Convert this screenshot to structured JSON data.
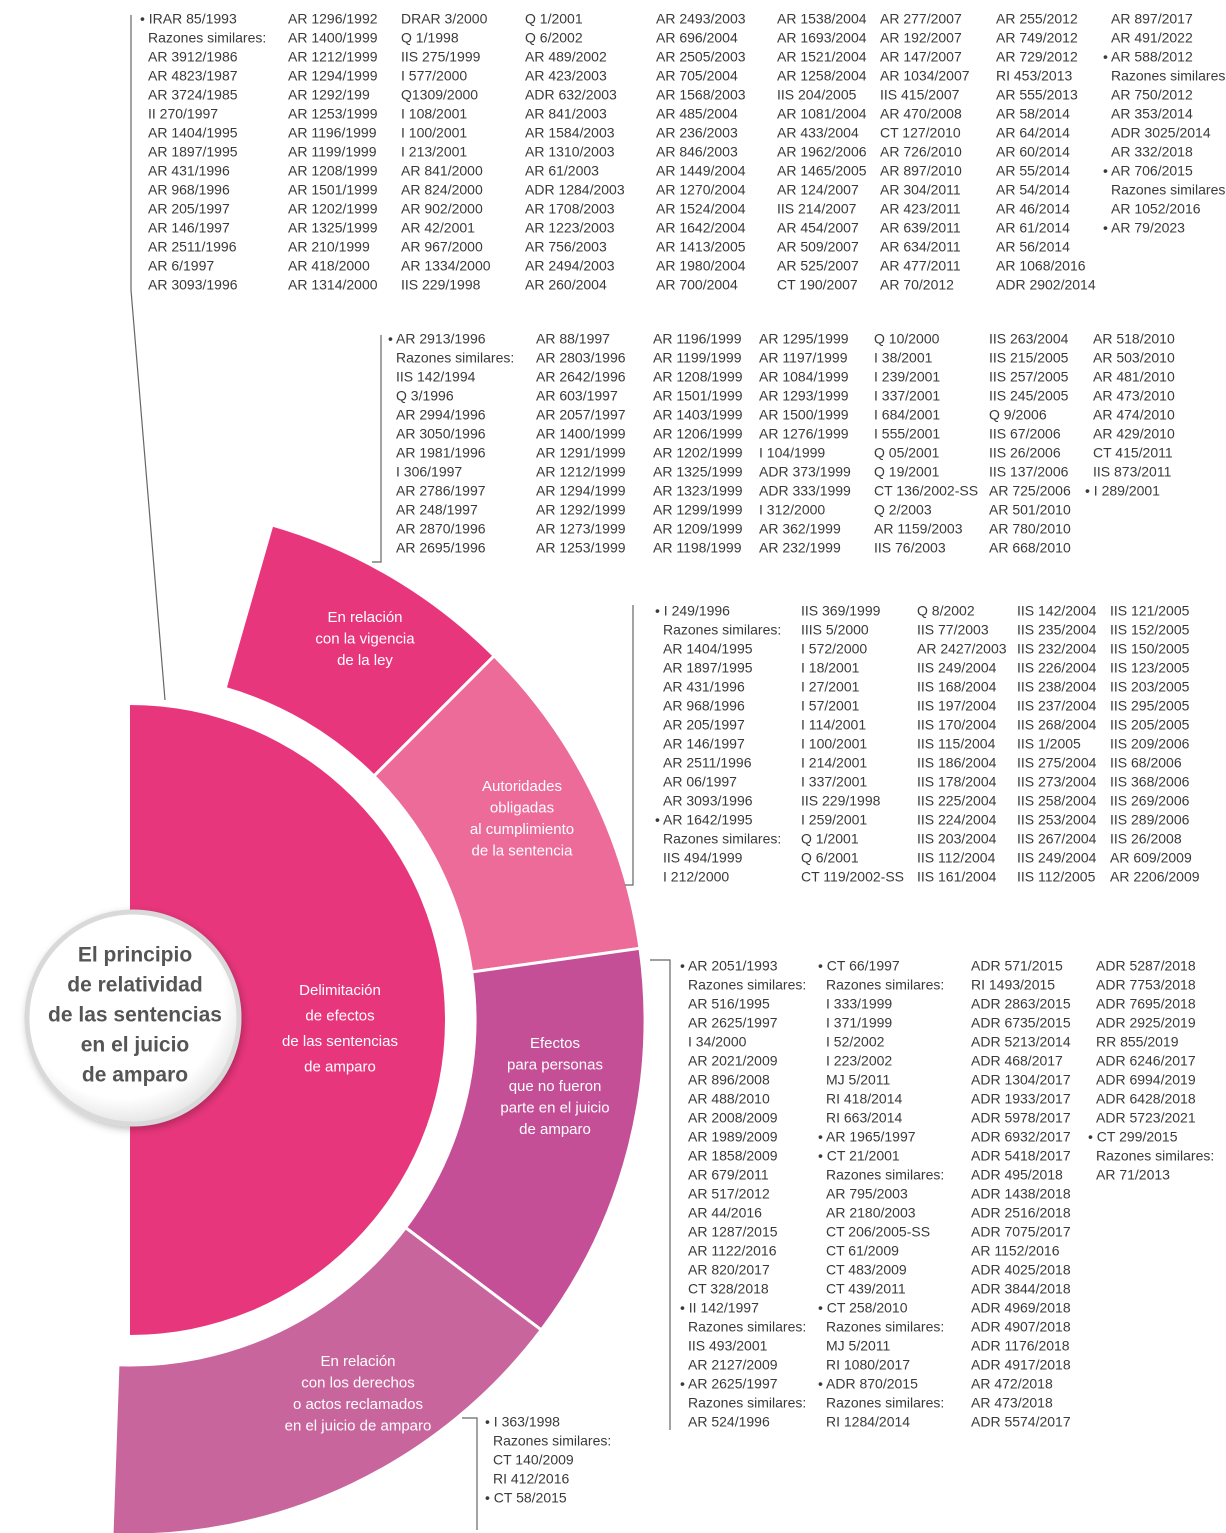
{
  "center_lines": [
    "El principio",
    "de relatividad",
    "de las sentencias",
    "en el juicio",
    "de amparo"
  ],
  "inner_lines": [
    "Delimitación",
    "de efectos",
    "de las sentencias",
    "de amparo"
  ],
  "segments": [
    {
      "label": [
        "En relación",
        "con la vigencia",
        "de la ley"
      ]
    },
    {
      "label": [
        "Autoridades",
        "obligadas",
        "al cumplimiento",
        "de la sentencia"
      ]
    },
    {
      "label": [
        "Efectos",
        "para personas",
        "que no fueron",
        "parte en el juicio",
        "de amparo"
      ]
    },
    {
      "label": [
        "En relación",
        "con los derechos",
        "o actos reclamados",
        "en el juicio de amparo"
      ]
    }
  ],
  "groups": [
    {
      "columns": [
        [
          "• IRAR 85/1993",
          "Razones similares:",
          "AR 3912/1986",
          "AR 4823/1987",
          "AR 3724/1985",
          "II 270/1997",
          "AR 1404/1995",
          "AR 1897/1995",
          "AR 431/1996",
          "AR 968/1996",
          "AR 205/1997",
          "AR 146/1997",
          "AR 2511/1996",
          "AR 6/1997",
          "AR 3093/1996"
        ],
        [
          "AR 1296/1992",
          "AR 1400/1999",
          "AR 1212/1999",
          "AR 1294/1999",
          "AR 1292/199",
          "AR 1253/1999",
          "AR 1196/1999",
          "AR 1199/1999",
          "AR 1208/1999",
          "AR 1501/1999",
          "AR 1202/1999",
          "AR 1325/1999",
          "AR 210/1999",
          "AR 418/2000",
          "AR 1314/2000"
        ],
        [
          "DRAR 3/2000",
          "Q 1/1998",
          "IIS 275/1999",
          "I 577/2000",
          "Q1309/2000",
          "I 108/2001",
          "I 100/2001",
          "I 213/2001",
          "AR 841/2000",
          "AR 824/2000",
          "AR 902/2000",
          "AR 42/2001",
          "AR 967/2000",
          "AR 1334/2000",
          "IIS 229/1998"
        ],
        [
          "Q 1/2001",
          "Q 6/2002",
          "AR 489/2002",
          "AR 423/2003",
          "ADR 632/2003",
          "AR 841/2003",
          "AR 1584/2003",
          "AR 1310/2003",
          "AR 61/2003",
          "ADR 1284/2003",
          "AR 1708/2003",
          "AR 1223/2003",
          "AR 756/2003",
          "AR 2494/2003",
          "AR 260/2004"
        ],
        [
          "AR 2493/2003",
          "AR 696/2004",
          "AR 2505/2003",
          "AR 705/2004",
          "AR 1568/2003",
          "AR 485/2004",
          "AR 236/2003",
          "AR 846/2003",
          "AR 1449/2004",
          "AR 1270/2004",
          "AR 1524/2004",
          "AR 1642/2004",
          "AR 1413/2005",
          "AR 1980/2004",
          "AR 700/2004"
        ],
        [
          "AR 1538/2004",
          "AR 1693/2004",
          "AR 1521/2004",
          "AR 1258/2004",
          "IIS 204/2005",
          "AR 1081/2004",
          "AR 433/2004",
          "AR 1962/2006",
          "AR 1465/2005",
          "AR 124/2007",
          "IIS 214/2007",
          "AR 454/2007",
          "AR 509/2007",
          "AR 525/2007",
          "CT 190/2007"
        ],
        [
          "AR 277/2007",
          "AR 192/2007",
          "AR 147/2007",
          "AR 1034/2007",
          "IIS 415/2007",
          "AR 470/2008",
          "CT 127/2010",
          "AR 726/2010",
          "AR 897/2010",
          "AR 304/2011",
          "AR 423/2011",
          "AR 639/2011",
          "AR 634/2011",
          "AR 477/2011",
          "AR 70/2012"
        ],
        [
          "AR 255/2012",
          "AR 749/2012",
          "AR 729/2012",
          "RI 453/2013",
          "AR 555/2013",
          "AR 58/2014",
          "AR 64/2014",
          "AR 60/2014",
          "AR 55/2014",
          "AR 54/2014",
          "AR 46/2014",
          "AR 61/2014",
          "AR 56/2014",
          "AR 1068/2016",
          "ADR 2902/2014"
        ],
        [
          "AR 897/2017",
          "AR 491/2022",
          "• AR 588/2012",
          "Razones similares:",
          "AR 750/2012",
          "AR 353/2014",
          "ADR 3025/2014",
          "AR 332/2018",
          "• AR 706/2015",
          "Razones similares:",
          "AR 1052/2016",
          "• AR 79/2023"
        ]
      ]
    },
    {
      "columns": [
        [
          "• AR 2913/1996",
          "Razones similares:",
          "IIS 142/1994",
          "Q 3/1996",
          "AR  2994/1996",
          "AR  3050/1996",
          "AR 1981/1996",
          "I 306/1997",
          "AR 2786/1997",
          "AR  248/1997",
          "AR 2870/1996",
          "AR 2695/1996"
        ],
        [
          "AR 88/1997",
          "AR 2803/1996",
          "AR 2642/1996",
          "AR 603/1997",
          "AR 2057/1997",
          "AR 1400/1999",
          "AR 1291/1999",
          "AR 1212/1999",
          "AR 1294/1999",
          "AR 1292/1999",
          "AR 1273/1999",
          "AR 1253/1999"
        ],
        [
          "AR 1196/1999",
          "AR 1199/1999",
          "AR 1208/1999",
          "AR 1501/1999",
          "AR 1403/1999",
          "AR 1206/1999",
          "AR 1202/1999",
          "AR 1325/1999",
          "AR 1323/1999",
          "AR 1299/1999",
          "AR 1209/1999",
          "AR 1198/1999"
        ],
        [
          "AR 1295/1999",
          "AR 1197/1999",
          "AR 1084/1999",
          "AR 1293/1999",
          "AR 1500/1999",
          "AR 1276/1999",
          "I 104/1999",
          "ADR 373/1999",
          "ADR 333/1999",
          "I 312/2000",
          "AR 362/1999",
          "AR 232/1999"
        ],
        [
          "Q 10/2000",
          "I 38/2001",
          "I 239/2001",
          "I 337/2001",
          "I 684/2001",
          "I 555/2001",
          "Q 05/2001",
          "Q 19/2001",
          "CT 136/2002-SS",
          "Q 2/2003",
          "AR 1159/2003",
          "IIS 76/2003"
        ],
        [
          "IIS 263/2004",
          "IIS 215/2005",
          "IIS 257/2005",
          "IIS 245/2005",
          "Q 9/2006",
          "IIS 67/2006",
          "IIS 26/2006",
          "IIS 137/2006",
          "AR 725/2006",
          "AR 501/2010",
          "AR 780/2010",
          "AR 668/2010"
        ],
        [
          "AR 518/2010",
          "AR 503/2010",
          "AR 481/2010",
          "AR 473/2010",
          "AR 474/2010",
          "AR 429/2010",
          "CT 415/2011",
          "IIS 873/2011",
          "• I 289/2001"
        ]
      ]
    },
    {
      "columns": [
        [
          "• I 249/1996",
          "Razones similares:",
          "AR 1404/1995",
          "AR 1897/1995",
          "AR 431/1996",
          "AR 968/1996",
          "AR 205/1997",
          "AR 146/1997",
          "AR 2511/1996",
          "AR 06/1997",
          "AR 3093/1996",
          "• AR 1642/1995",
          "Razones similares:",
          "IIS 494/1999",
          "I 212/2000"
        ],
        [
          "IIS 369/1999",
          "IIIS 5/2000",
          "I 572/2000",
          "I 18/2001",
          "I 27/2001",
          "I 57/2001",
          "I 114/2001",
          "I 100/2001",
          "I 214/2001",
          "I 337/2001",
          "IIS 229/1998",
          "I 259/2001",
          "Q 1/2001",
          "Q 6/2001",
          "CT 119/2002-SS"
        ],
        [
          "Q 8/2002",
          "IIS 77/2003",
          "AR 2427/2003",
          "IIS 249/2004",
          "IIS 168/2004",
          "IIS 197/2004",
          "IIS 170/2004",
          "IIS 115/2004",
          "IIS 186/2004",
          "IIS 178/2004",
          "IIS 225/2004",
          "IIS 224/2004",
          "IIS 203/2004",
          "IIS 112/2004",
          "IIS 161/2004"
        ],
        [
          "IIS 142/2004",
          "IIS 235/2004",
          "IIS 232/2004",
          "IIS 226/2004",
          "IIS 238/2004",
          "IIS 237/2004",
          "IIS 268/2004",
          "IIS 1/2005",
          "IIS 275/2004",
          "IIS 273/2004",
          "IIS 258/2004",
          "IIS 253/2004",
          "IIS 267/2004",
          "IIS 249/2004",
          "IIS 112/2005"
        ],
        [
          "IIS 121/2005",
          "IIS 152/2005",
          "IIS 150/2005",
          "IIS 123/2005",
          "IIS 203/2005",
          "IIS 295/2005",
          "IIS 205/2005",
          "IIS 209/2006",
          "IIS 68/2006",
          "IIS 368/2006",
          "IIS 269/2006",
          "IIS 289/2006",
          "IIS 26/2008",
          "AR 609/2009",
          "AR 2206/2009"
        ]
      ]
    },
    {
      "columns": [
        [
          "• AR 2051/1993",
          "Razones similares:",
          "AR 516/1995",
          "AR 2625/1997",
          "I 34/2000",
          "AR 2021/2009",
          "AR 896/2008",
          "AR 488/2010",
          "AR 2008/2009",
          "AR 1989/2009",
          "AR 1858/2009",
          "AR 679/2011",
          "AR 517/2012",
          "AR 44/2016",
          "AR 1287/2015",
          "AR 1122/2016",
          "AR 820/2017",
          "CT 328/2018",
          "• II 142/1997",
          "Razones similares:",
          "IIS 493/2001",
          "AR 2127/2009",
          "• AR 2625/1997",
          "Razones similares:",
          "AR 524/1996"
        ],
        [
          "• CT 66/1997",
          "Razones similares:",
          "I 333/1999",
          "I 371/1999",
          "I 52/2002",
          "I 223/2002",
          "MJ 5/2011",
          "RI 418/2014",
          "RI 663/2014",
          "• AR 1965/1997",
          "• CT 21/2001",
          "Razones similares:",
          "AR 795/2003",
          "AR 2180/2003",
          "CT 206/2005-SS",
          "CT 61/2009",
          "CT 483/2009",
          "CT 439/2011",
          "• CT 258/2010",
          "Razones similares:",
          "MJ 5/2011",
          "RI 1080/2017",
          "• ADR 870/2015",
          "Razones similares:",
          "RI 1284/2014"
        ],
        [
          "ADR 571/2015",
          "RI 1493/2015",
          "ADR 2863/2015",
          "ADR 6735/2015",
          "ADR 5213/2014",
          "ADR 468/2017",
          "ADR 1304/2017",
          "ADR 1933/2017",
          "ADR 5978/2017",
          "ADR 6932/2017",
          "ADR 5418/2017",
          "ADR 495/2018",
          "ADR 1438/2018",
          "ADR 2516/2018",
          "ADR 7075/2017",
          "AR 1152/2016",
          "ADR 4025/2018",
          "ADR 3844/2018",
          "ADR 4969/2018",
          "ADR 4907/2018",
          "ADR 1176/2018",
          "ADR 4917/2018",
          "AR 472/2018",
          "AR 473/2018",
          "ADR 5574/2017"
        ],
        [
          "ADR 5287/2018",
          "ADR 7753/2018",
          "ADR 7695/2018",
          "ADR 2925/2019",
          "RR 855/2019",
          "ADR 6246/2017",
          "ADR 6994/2019",
          "ADR 6428/2018",
          "ADR 5723/2021",
          "• CT 299/2015",
          "Razones similares:",
          "AR 71/2013"
        ]
      ]
    },
    {
      "columns": [
        [
          "• I 363/1998",
          "Razones similares:",
          "CT 140/2009",
          "RI 412/2016",
          "• CT 58/2015"
        ]
      ]
    }
  ]
}
